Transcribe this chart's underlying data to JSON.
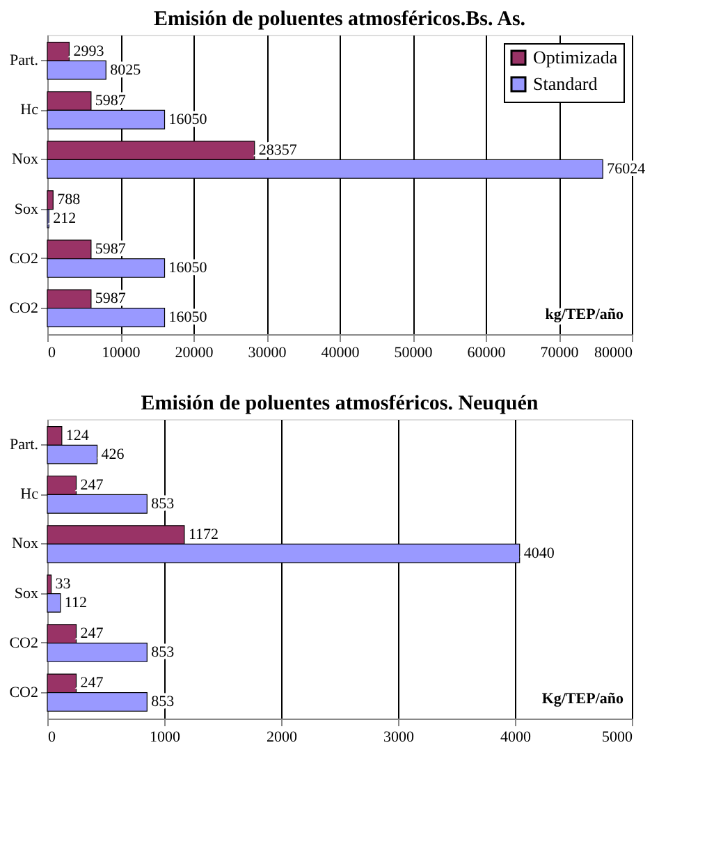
{
  "chart_data": [
    {
      "type": "bar",
      "orientation": "horizontal",
      "title": "Emisión de poluentes atmosféricos.Bs. As.",
      "categories": [
        "Part.",
        "Hc",
        "Nox",
        "Sox",
        "CO2",
        "CO2"
      ],
      "series": [
        {
          "name": "Optimizada",
          "color": "#993366",
          "values": [
            2993,
            5987,
            28357,
            788,
            5987,
            5987
          ]
        },
        {
          "name": "Standard",
          "color": "#9999ff",
          "values": [
            8025,
            16050,
            76024,
            212,
            16050,
            16050
          ]
        }
      ],
      "xlim": [
        0,
        80000
      ],
      "xticks": [
        0,
        10000,
        20000,
        30000,
        40000,
        50000,
        60000,
        70000,
        80000
      ],
      "grid": "x",
      "legend": "top right",
      "data_labels": true,
      "annotations": [
        "kg/TEP/año"
      ]
    },
    {
      "type": "bar",
      "orientation": "horizontal",
      "title": "Emisión de poluentes atmosféricos. Neuquén",
      "categories": [
        "Part.",
        "Hc",
        "Nox",
        "Sox",
        "CO2",
        "CO2"
      ],
      "series": [
        {
          "name": "Optimizada",
          "color": "#993366",
          "values": [
            124,
            247,
            1172,
            33,
            247,
            247
          ]
        },
        {
          "name": "Standard",
          "color": "#9999ff",
          "values": [
            426,
            853,
            4040,
            112,
            853,
            853
          ]
        }
      ],
      "xlim": [
        0,
        5000
      ],
      "xticks": [
        0,
        1000,
        2000,
        3000,
        4000,
        5000
      ],
      "grid": "x",
      "legend": "top right",
      "data_labels": true,
      "annotations": [
        "Kg/TEP/año"
      ]
    }
  ]
}
